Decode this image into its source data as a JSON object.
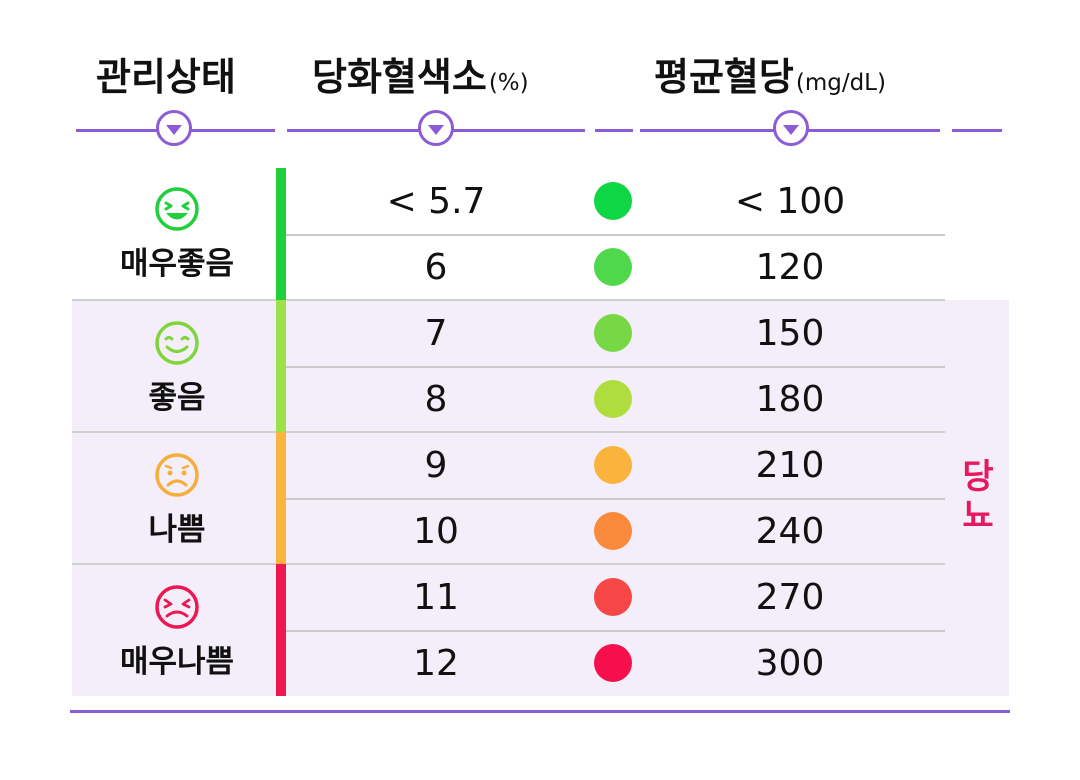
{
  "headers": {
    "status": "관리상태",
    "hba1c": "당화혈색소",
    "hba1c_unit": "(%)",
    "glucose": "평균혈당",
    "glucose_unit": "(mg/dL)"
  },
  "groups": [
    {
      "label": "매우좋음",
      "color": "#1fd03a",
      "face": "grin"
    },
    {
      "label": "좋음",
      "color": "#80d43c",
      "face": "smile"
    },
    {
      "label": "나쁨",
      "color": "#f6ad3a",
      "face": "sad"
    },
    {
      "label": "매우나쁨",
      "color": "#ee1752",
      "face": "upset"
    }
  ],
  "rows": [
    {
      "hba1c": "< 5.7",
      "glucose": "< 100",
      "dot_color": "#0fd645"
    },
    {
      "hba1c": "6",
      "glucose": "120",
      "dot_color": "#4fd84c"
    },
    {
      "hba1c": "7",
      "glucose": "150",
      "dot_color": "#78d744"
    },
    {
      "hba1c": "8",
      "glucose": "180",
      "dot_color": "#b0dd3e"
    },
    {
      "hba1c": "9",
      "glucose": "210",
      "dot_color": "#fab33c"
    },
    {
      "hba1c": "10",
      "glucose": "240",
      "dot_color": "#f98a3b"
    },
    {
      "hba1c": "11",
      "glucose": "270",
      "dot_color": "#f64646"
    },
    {
      "hba1c": "12",
      "glucose": "300",
      "dot_color": "#f5104d"
    }
  ],
  "side_label": "당뇨",
  "accent_color": "#8b5cd6"
}
